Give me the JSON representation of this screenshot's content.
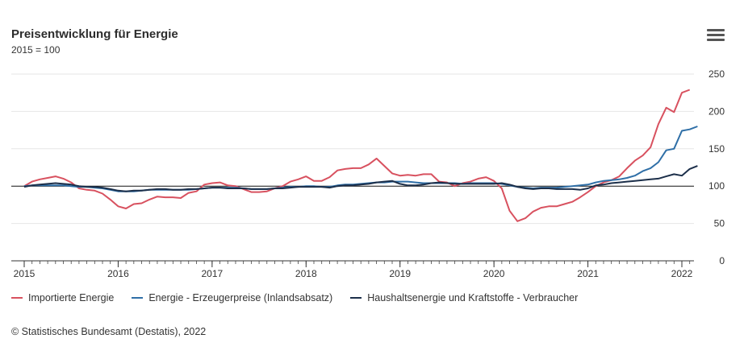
{
  "chart_data": {
    "type": "line",
    "title": "Preisentwicklung für Energie",
    "subtitle": "2015 = 100",
    "ylim": [
      0,
      250
    ],
    "yticks": [
      0,
      50,
      100,
      150,
      200,
      250
    ],
    "xlim": [
      2015.0,
      2022.2
    ],
    "xticks": [
      2015,
      2016,
      2017,
      2018,
      2019,
      2020,
      2021,
      2022
    ],
    "xtick_labels": [
      "2015",
      "2016",
      "2017",
      "2018",
      "2019",
      "2020",
      "2021",
      "2022"
    ],
    "reference_line": 100,
    "grid": true,
    "legend_position": "bottom",
    "series": [
      {
        "name": "Importierte Energie",
        "color": "#d8515f",
        "start": 2015.0,
        "step": 0.0833333,
        "values": [
          100,
          106,
          109,
          111,
          113,
          110,
          105,
          97,
          95,
          94,
          90,
          82,
          73,
          70,
          76,
          77,
          82,
          86,
          85,
          85,
          84,
          91,
          93,
          102,
          104,
          105,
          101,
          100,
          96,
          92,
          92,
          93,
          97,
          100,
          106,
          109,
          113,
          107,
          107,
          112,
          121,
          123,
          124,
          124,
          129,
          137,
          127,
          117,
          114,
          115,
          114,
          116,
          116,
          106,
          105,
          100,
          104,
          106,
          110,
          112,
          107,
          97,
          67,
          53,
          57,
          66,
          71,
          73,
          73,
          76,
          79,
          85,
          92,
          100,
          105,
          108,
          113,
          124,
          134,
          141,
          152,
          183,
          205,
          199,
          225,
          229
        ]
      },
      {
        "name": "Energie - Erzeugerpreise (Inlandsabsatz)",
        "color": "#2f6fa7",
        "start": 2015.0,
        "step": 0.0833333,
        "values": [
          100,
          101,
          101,
          101,
          101,
          101,
          100,
          99,
          99,
          98,
          97,
          95,
          93,
          93,
          93,
          94,
          95,
          95,
          95,
          95,
          95,
          95,
          96,
          97,
          98,
          98,
          98,
          98,
          97,
          96,
          96,
          96,
          97,
          98,
          99,
          99,
          100,
          100,
          99,
          99,
          101,
          102,
          102,
          103,
          104,
          105,
          105,
          106,
          106,
          106,
          105,
          104,
          104,
          104,
          104,
          104,
          103,
          104,
          104,
          104,
          104,
          103,
          101,
          99,
          98,
          97,
          98,
          98,
          98,
          99,
          100,
          101,
          102,
          105,
          107,
          108,
          109,
          111,
          114,
          120,
          124,
          132,
          148,
          150,
          174,
          176,
          180
        ]
      },
      {
        "name": "Haushaltsenergie und Kraftstoffe - Verbraucher",
        "color": "#1c2f4a",
        "start": 2015.0,
        "step": 0.0833333,
        "values": [
          99,
          101,
          102,
          103,
          104,
          103,
          102,
          100,
          99,
          99,
          98,
          96,
          94,
          93,
          94,
          94,
          95,
          96,
          96,
          95,
          95,
          96,
          96,
          97,
          98,
          98,
          97,
          97,
          97,
          96,
          96,
          96,
          97,
          97,
          98,
          99,
          99,
          99,
          99,
          98,
          100,
          101,
          101,
          102,
          103,
          105,
          106,
          107,
          103,
          101,
          101,
          102,
          104,
          105,
          104,
          103,
          103,
          103,
          103,
          103,
          103,
          104,
          102,
          99,
          97,
          96,
          97,
          97,
          96,
          96,
          96,
          95,
          97,
          101,
          102,
          104,
          105,
          106,
          107,
          108,
          109,
          110,
          113,
          116,
          114,
          123,
          127
        ]
      }
    ]
  },
  "credit": "© Statistisches Bundesamt (Destatis), 2022",
  "menu_icon": "hamburger-menu-icon"
}
